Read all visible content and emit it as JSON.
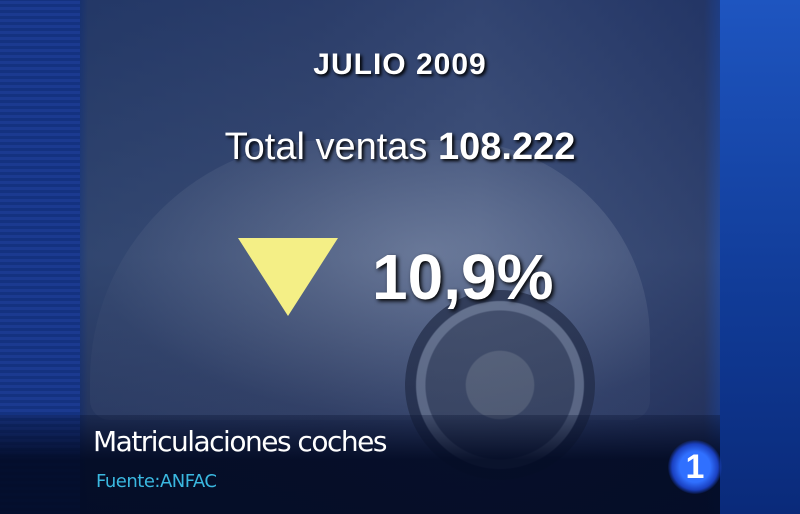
{
  "graphic": {
    "title": "JULIO 2009",
    "total_label": "Total ventas",
    "total_value": "108.222",
    "change_icon": "down-triangle-icon",
    "change_color": "#f4ef86",
    "change_value": "10,9%"
  },
  "caption": {
    "headline": "Matriculaciones coches",
    "source": "Fuente:ANFAC",
    "source_color": "#3ab8e0"
  },
  "channel_logo": {
    "text": "1"
  }
}
